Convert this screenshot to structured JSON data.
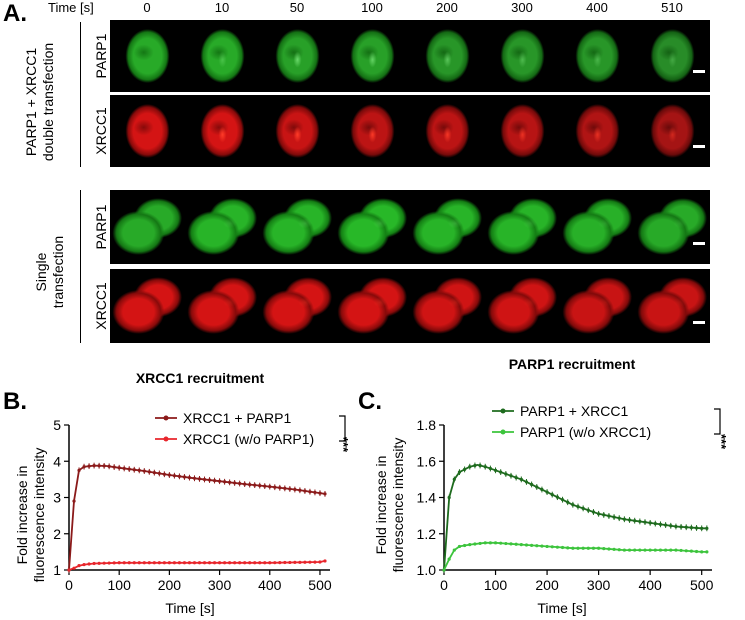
{
  "panel_a": {
    "letter": "A.",
    "time_header": "Time [s]",
    "times": [
      "0",
      "10",
      "50",
      "100",
      "200",
      "300",
      "400",
      "510"
    ],
    "group_double": [
      "PARP1 + XRCC1",
      "double transfection"
    ],
    "group_single": [
      "Single",
      "transfection"
    ],
    "row_labels": [
      "PARP1",
      "XRCC1",
      "PARP1",
      "XRCC1"
    ]
  },
  "panel_b": {
    "letter": "B.",
    "title": "XRCC1 recruitment",
    "ylabel_line1": "Fold increase in",
    "ylabel_line2": "fluorescence intensity",
    "xlabel": "Time [s]",
    "significance": "***"
  },
  "panel_c": {
    "letter": "C.",
    "title": "PARP1 recruitment",
    "ylabel_line1": "Fold increase in",
    "ylabel_line2": "fluorescence intensity",
    "xlabel": "Time [s]",
    "significance": "***"
  },
  "chart_data": [
    {
      "type": "line",
      "title": "XRCC1 recruitment",
      "xlabel": "Time [s]",
      "ylabel": "Fold increase in fluorescence intensity",
      "xlim": [
        0,
        520
      ],
      "ylim": [
        1,
        5
      ],
      "xticks": [
        0,
        100,
        200,
        300,
        400,
        500
      ],
      "yticks": [
        1,
        2,
        3,
        4,
        5
      ],
      "legend_position": "top-right",
      "series": [
        {
          "name": "XRCC1 + PARP1",
          "color": "#8b1a1a",
          "x": [
            0,
            10,
            20,
            30,
            50,
            75,
            100,
            150,
            200,
            250,
            300,
            350,
            400,
            450,
            500,
            510
          ],
          "y": [
            1.0,
            2.9,
            3.75,
            3.85,
            3.88,
            3.87,
            3.82,
            3.73,
            3.62,
            3.53,
            3.45,
            3.37,
            3.3,
            3.22,
            3.12,
            3.1
          ]
        },
        {
          "name": "XRCC1 (w/o  PARP1)",
          "color": "#e8262c",
          "x": [
            0,
            10,
            20,
            30,
            50,
            100,
            200,
            300,
            400,
            500,
            510
          ],
          "y": [
            1.0,
            1.05,
            1.12,
            1.15,
            1.18,
            1.2,
            1.2,
            1.2,
            1.2,
            1.22,
            1.25
          ]
        }
      ]
    },
    {
      "type": "line",
      "title": "PARP1 recruitment",
      "xlabel": "Time [s]",
      "ylabel": "Fold increase in fluorescence intensity",
      "xlim": [
        0,
        520
      ],
      "ylim": [
        1.0,
        1.8
      ],
      "xticks": [
        0,
        100,
        200,
        300,
        400,
        500
      ],
      "yticks": [
        1.0,
        1.2,
        1.4,
        1.6,
        1.8
      ],
      "legend_position": "top-right",
      "series": [
        {
          "name": "PARP1 + XRCC1",
          "color": "#1e6b1e",
          "x": [
            0,
            10,
            20,
            30,
            50,
            65,
            80,
            100,
            150,
            200,
            250,
            300,
            350,
            400,
            450,
            500,
            510
          ],
          "y": [
            1.0,
            1.4,
            1.5,
            1.54,
            1.57,
            1.58,
            1.57,
            1.55,
            1.5,
            1.43,
            1.36,
            1.31,
            1.28,
            1.26,
            1.24,
            1.23,
            1.23
          ]
        },
        {
          "name": "PARP1 (w/o XRCC1)",
          "color": "#3cc43c",
          "x": [
            0,
            10,
            20,
            30,
            50,
            80,
            100,
            150,
            200,
            250,
            300,
            350,
            400,
            450,
            500,
            510
          ],
          "y": [
            1.0,
            1.06,
            1.11,
            1.13,
            1.14,
            1.15,
            1.15,
            1.14,
            1.13,
            1.12,
            1.12,
            1.11,
            1.11,
            1.11,
            1.1,
            1.1
          ]
        }
      ]
    }
  ]
}
